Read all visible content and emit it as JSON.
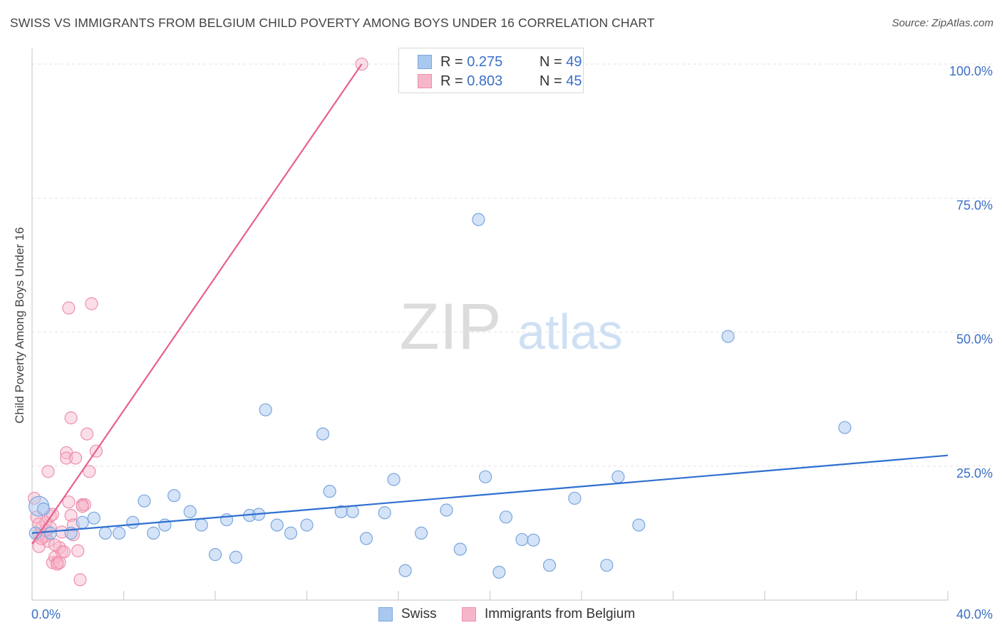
{
  "title": "SWISS VS IMMIGRANTS FROM BELGIUM CHILD POVERTY AMONG BOYS UNDER 16 CORRELATION CHART",
  "source": "Source: ZipAtlas.com",
  "watermark": {
    "zip": "ZIP",
    "atlas": "atlas"
  },
  "legend": {
    "r_label": "R =",
    "n_label": "N =",
    "swiss": {
      "r": "0.275",
      "n": "49"
    },
    "belgium": {
      "r": "0.803",
      "n": "45"
    }
  },
  "colors": {
    "swiss_fill": "#a9c8ef",
    "swiss_stroke": "#7aa6df",
    "swiss_line": "#2f6fd0",
    "belgium_fill": "#f6b6c9",
    "belgium_stroke": "#ee8fac",
    "belgium_line": "#e8608c",
    "axis_text": "#3a6fc7"
  },
  "chart_data": {
    "type": "scatter",
    "title": "SWISS VS IMMIGRANTS FROM BELGIUM CHILD POVERTY AMONG BOYS UNDER 16 CORRELATION CHART",
    "xlabel": "",
    "ylabel": "Child Poverty Among Boys Under 16",
    "xlim": [
      0,
      40
    ],
    "ylim": [
      0,
      102
    ],
    "x_tick_labels": [
      "0.0%",
      "40.0%"
    ],
    "y_ticks": [
      25,
      50,
      75,
      100
    ],
    "y_tick_labels": [
      "25.0%",
      "50.0%",
      "75.0%",
      "100.0%"
    ],
    "grid": true,
    "legend_position": "top-center",
    "series": [
      {
        "name": "Swiss",
        "trend": {
          "x": [
            0,
            40
          ],
          "y": [
            12.5,
            27
          ]
        },
        "points": [
          [
            0.3,
            17.5
          ],
          [
            0.8,
            12.5
          ],
          [
            1.7,
            12.5
          ],
          [
            2.2,
            14.5
          ],
          [
            2.7,
            15.3
          ],
          [
            3.2,
            12.5
          ],
          [
            3.8,
            12.5
          ],
          [
            4.4,
            14.5
          ],
          [
            4.9,
            18.5
          ],
          [
            5.3,
            12.5
          ],
          [
            5.8,
            14
          ],
          [
            6.2,
            19.5
          ],
          [
            6.9,
            16.5
          ],
          [
            7.4,
            14
          ],
          [
            8.0,
            8.5
          ],
          [
            8.5,
            15
          ],
          [
            8.9,
            8
          ],
          [
            9.5,
            15.8
          ],
          [
            9.9,
            16
          ],
          [
            10.2,
            35.5
          ],
          [
            10.7,
            14
          ],
          [
            11.3,
            12.5
          ],
          [
            12.0,
            14
          ],
          [
            12.7,
            31
          ],
          [
            13.0,
            20.3
          ],
          [
            13.5,
            16.5
          ],
          [
            14.0,
            16.5
          ],
          [
            14.6,
            11.5
          ],
          [
            15.4,
            16.3
          ],
          [
            15.8,
            22.5
          ],
          [
            16.3,
            5.5
          ],
          [
            17.0,
            12.5
          ],
          [
            18.1,
            16.8
          ],
          [
            18.7,
            9.5
          ],
          [
            19.5,
            71
          ],
          [
            19.8,
            23
          ],
          [
            20.4,
            5.2
          ],
          [
            20.7,
            15.5
          ],
          [
            21.4,
            11.3
          ],
          [
            21.9,
            11.2
          ],
          [
            22.6,
            6.5
          ],
          [
            23.7,
            19
          ],
          [
            25.1,
            6.5
          ],
          [
            25.6,
            23
          ],
          [
            26.5,
            14
          ],
          [
            30.4,
            49.2
          ],
          [
            35.5,
            32.2
          ],
          [
            0.15,
            12.5
          ],
          [
            0.5,
            17
          ]
        ]
      },
      {
        "name": "Immigrants from Belgium",
        "trend": {
          "x": [
            0,
            14.4
          ],
          "y": [
            10.5,
            100
          ]
        },
        "points": [
          [
            0.1,
            19
          ],
          [
            0.2,
            15.5
          ],
          [
            0.3,
            12.3
          ],
          [
            0.3,
            10
          ],
          [
            0.4,
            13.5
          ],
          [
            0.5,
            11.8
          ],
          [
            0.6,
            12
          ],
          [
            0.6,
            14.5
          ],
          [
            0.7,
            11
          ],
          [
            0.8,
            15.7
          ],
          [
            0.9,
            16
          ],
          [
            0.7,
            24
          ],
          [
            0.8,
            13.5
          ],
          [
            0.9,
            7
          ],
          [
            1.0,
            8
          ],
          [
            1.1,
            7
          ],
          [
            1.1,
            6.7
          ],
          [
            1.2,
            9.8
          ],
          [
            1.3,
            9
          ],
          [
            1.4,
            9
          ],
          [
            1.2,
            7
          ],
          [
            1.3,
            12.7
          ],
          [
            1.5,
            27.5
          ],
          [
            1.5,
            26.5
          ],
          [
            1.6,
            18.3
          ],
          [
            1.7,
            15.8
          ],
          [
            1.8,
            14
          ],
          [
            1.6,
            54.5
          ],
          [
            1.7,
            34
          ],
          [
            1.9,
            26.5
          ],
          [
            2.0,
            9.2
          ],
          [
            2.1,
            3.8
          ],
          [
            2.2,
            17.8
          ],
          [
            2.3,
            17.8
          ],
          [
            2.4,
            31
          ],
          [
            2.5,
            24
          ],
          [
            2.6,
            55.3
          ],
          [
            2.8,
            27.8
          ],
          [
            14.4,
            100
          ],
          [
            0.4,
            11.5
          ],
          [
            0.6,
            13
          ],
          [
            1.0,
            10.3
          ],
          [
            0.3,
            14.2
          ],
          [
            1.8,
            12.2
          ],
          [
            2.2,
            17.5
          ]
        ]
      }
    ]
  },
  "bottom_legend": {
    "swiss": "Swiss",
    "belgium": "Immigrants from Belgium"
  }
}
